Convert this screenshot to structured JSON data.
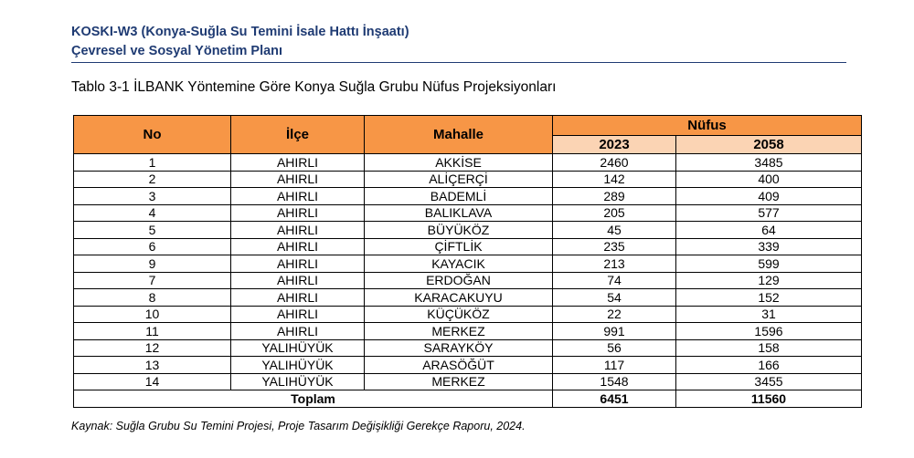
{
  "header": {
    "line1": "KOSKI-W3 (Konya-Suğla Su Temini İsale Hattı İnşaatı)",
    "line2": "Çevresel ve Sosyal Yönetim Planı"
  },
  "caption": "Tablo 3-1 İLBANK Yöntemine Göre Konya Suğla Grubu Nüfus Projeksiyonları",
  "table": {
    "headers": {
      "no": "No",
      "ilce": "İlçe",
      "mahalle": "Mahalle",
      "nufus": "Nüfus",
      "y2023": "2023",
      "y2058": "2058"
    },
    "rows": [
      {
        "no": "1",
        "ilce": "AHIRLI",
        "mahalle": "AKKİSE",
        "p2023": "2460",
        "p2058": "3485"
      },
      {
        "no": "2",
        "ilce": "AHIRLI",
        "mahalle": "ALİÇERÇİ",
        "p2023": "142",
        "p2058": "400"
      },
      {
        "no": "3",
        "ilce": "AHIRLI",
        "mahalle": "BADEMLİ",
        "p2023": "289",
        "p2058": "409"
      },
      {
        "no": "4",
        "ilce": "AHIRLI",
        "mahalle": "BALIKLAVA",
        "p2023": "205",
        "p2058": "577"
      },
      {
        "no": "5",
        "ilce": "AHIRLI",
        "mahalle": "BÜYÜKÖZ",
        "p2023": "45",
        "p2058": "64"
      },
      {
        "no": "6",
        "ilce": "AHIRLI",
        "mahalle": "ÇİFTLİK",
        "p2023": "235",
        "p2058": "339"
      },
      {
        "no": "9",
        "ilce": "AHIRLI",
        "mahalle": "KAYACIK",
        "p2023": "213",
        "p2058": "599"
      },
      {
        "no": "7",
        "ilce": "AHIRLI",
        "mahalle": "ERDOĞAN",
        "p2023": "74",
        "p2058": "129"
      },
      {
        "no": "8",
        "ilce": "AHIRLI",
        "mahalle": "KARACAKUYU",
        "p2023": "54",
        "p2058": "152"
      },
      {
        "no": "10",
        "ilce": "AHIRLI",
        "mahalle": "KÜÇÜKÖZ",
        "p2023": "22",
        "p2058": "31"
      },
      {
        "no": "11",
        "ilce": "AHIRLI",
        "mahalle": "MERKEZ",
        "p2023": "991",
        "p2058": "1596"
      },
      {
        "no": "12",
        "ilce": "YALIHÜYÜK",
        "mahalle": "SARAYKÖY",
        "p2023": "56",
        "p2058": "158"
      },
      {
        "no": "13",
        "ilce": "YALIHÜYÜK",
        "mahalle": "ARASÖĞÜT",
        "p2023": "117",
        "p2058": "166"
      },
      {
        "no": "14",
        "ilce": "YALIHÜYÜK",
        "mahalle": "MERKEZ",
        "p2023": "1548",
        "p2058": "3455"
      }
    ],
    "total": {
      "label": "Toplam",
      "p2023": "6451",
      "p2058": "11560"
    }
  },
  "source": {
    "label": "Kaynak",
    "text": ": Suğla Grubu Su Temini Projesi, Proje Tasarım Değişikliği Gerekçe Raporu, 2024."
  }
}
